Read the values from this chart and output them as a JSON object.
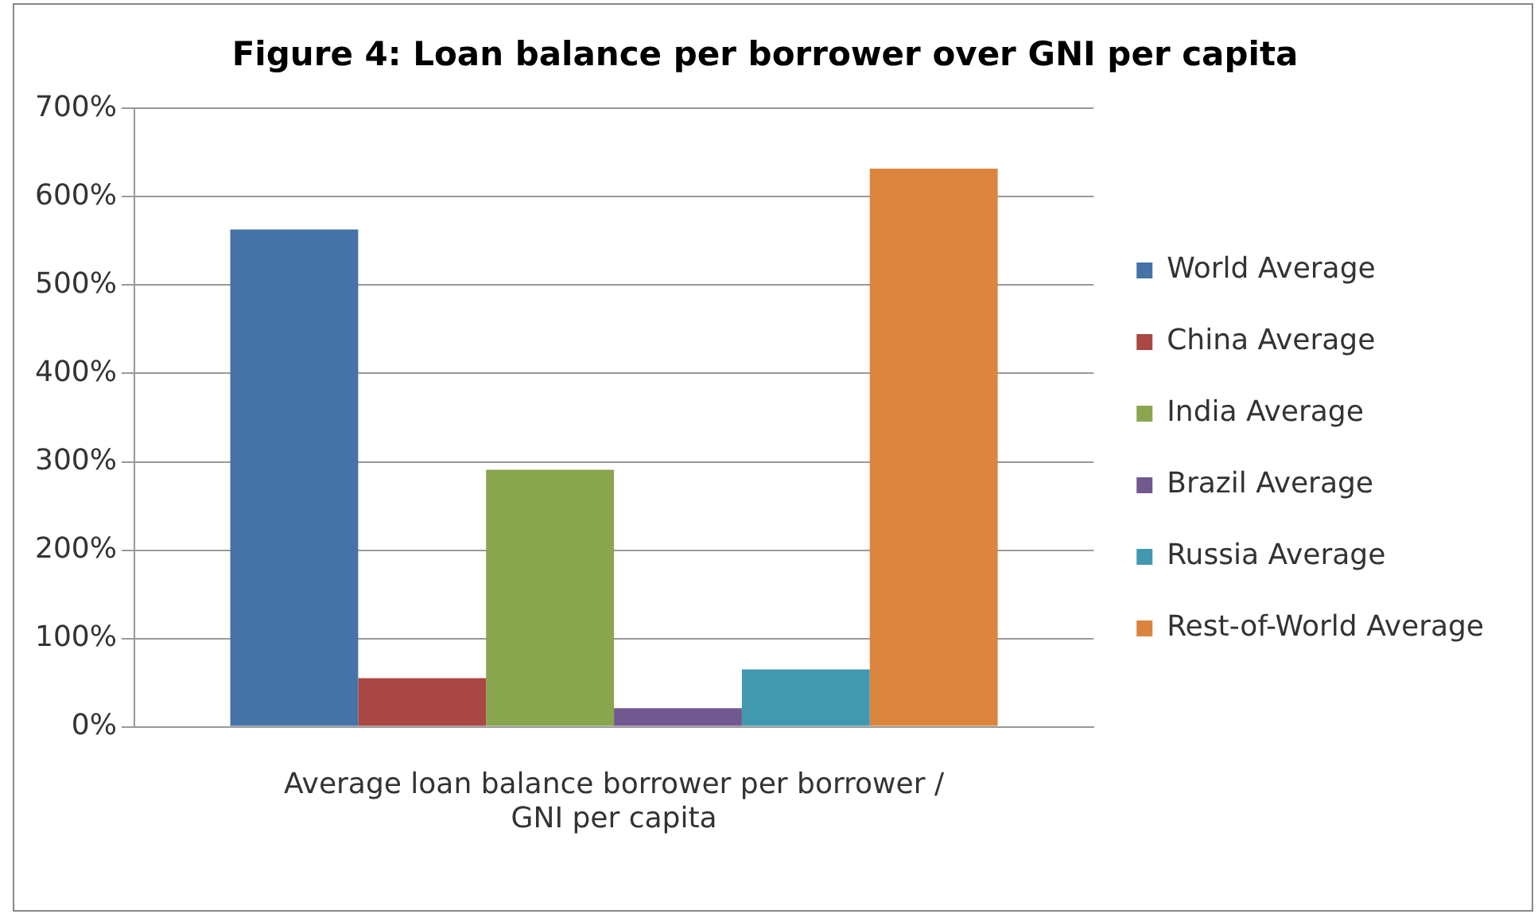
{
  "chart_data": {
    "type": "bar",
    "title": "Figure 4: Loan balance per borrower over GNI per capita",
    "categories": [
      "Average loan balance borrower per borrower / GNI per capita"
    ],
    "series": [
      {
        "name": "World Average",
        "color": "#4572a7",
        "values": [
          563
        ]
      },
      {
        "name": "China Average",
        "color": "#aa4643",
        "values": [
          55
        ]
      },
      {
        "name": "India Average",
        "color": "#89a54e",
        "values": [
          291
        ]
      },
      {
        "name": "Brazil Average",
        "color": "#71588f",
        "values": [
          21
        ]
      },
      {
        "name": "Russia Average",
        "color": "#4198af",
        "values": [
          65
        ]
      },
      {
        "name": "Rest-of-World Average",
        "color": "#db843d",
        "values": [
          632
        ]
      }
    ],
    "ylim": [
      0,
      700
    ],
    "yticks": [
      {
        "value": 0,
        "label": "0%"
      },
      {
        "value": 100,
        "label": "100%"
      },
      {
        "value": 200,
        "label": "200%"
      },
      {
        "value": 300,
        "label": "300%"
      },
      {
        "value": 400,
        "label": "400%"
      },
      {
        "value": 500,
        "label": "500%"
      },
      {
        "value": 600,
        "label": "600%"
      },
      {
        "value": 700,
        "label": "700%"
      }
    ],
    "grid": "y",
    "legend": "right"
  }
}
